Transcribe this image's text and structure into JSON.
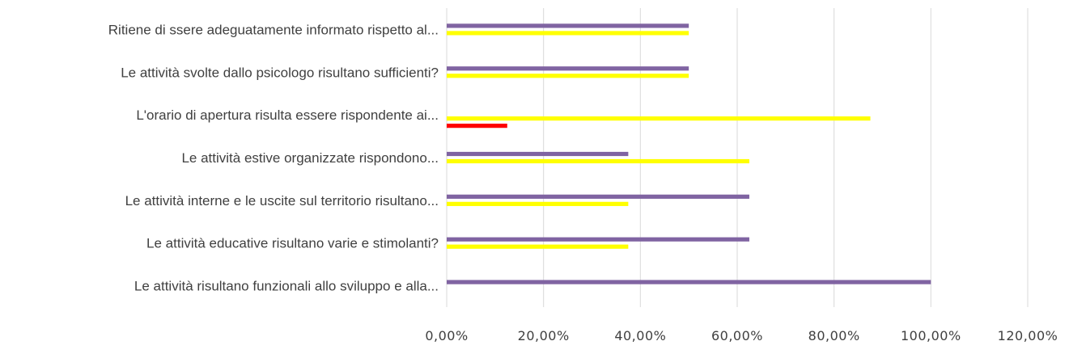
{
  "chart_data": {
    "type": "bar",
    "orientation": "horizontal",
    "categories": [
      "Ritiene di ssere adeguatamente informato rispetto al...",
      "Le attività svolte dallo psicologo risultano sufficienti?",
      "L'orario di apertura risulta essere rispondente ai...",
      "Le attività estive organizzate rispondono...",
      "Le attività interne e le uscite sul territorio risultano...",
      "Le attività educative risultano varie e stimolanti?",
      "Le attività risultano funzionali allo sviluppo e alla..."
    ],
    "series": [
      {
        "color": "#8064a2",
        "values": [
          50,
          50,
          0,
          37.5,
          62.5,
          62.5,
          100
        ]
      },
      {
        "color": "#ffff00",
        "values": [
          50,
          50,
          87.5,
          62.5,
          37.5,
          37.5,
          0
        ]
      },
      {
        "color": "#ff0000",
        "values": [
          0,
          0,
          12.5,
          0,
          0,
          0,
          0
        ]
      }
    ],
    "xlim": [
      0,
      120
    ],
    "x_ticks": [
      0,
      20,
      40,
      60,
      80,
      100,
      120
    ],
    "x_tick_labels": [
      "0,00%",
      "20,00%",
      "40,00%",
      "60,00%",
      "80,00%",
      "100,00%",
      "120,00%"
    ],
    "grid": true,
    "legend": "none"
  }
}
